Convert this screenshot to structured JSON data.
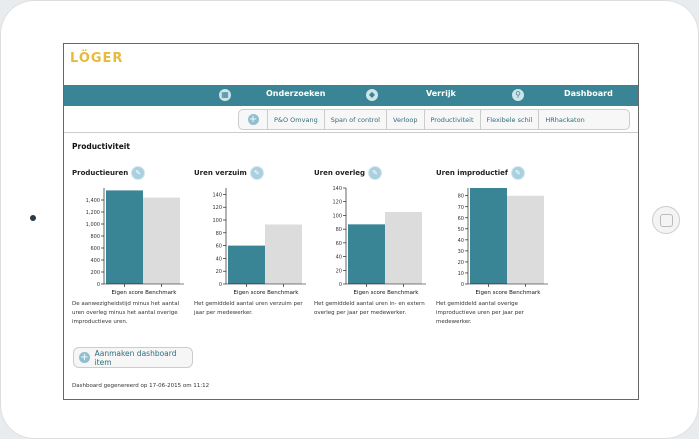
{
  "logo": {
    "text": "LÖGER"
  },
  "nav": {
    "items": [
      {
        "label": "Onderzoeken",
        "icon": "grid-icon"
      },
      {
        "label": "Verrijk",
        "icon": "tag-icon"
      },
      {
        "label": "Dashboard",
        "icon": "search-icon"
      }
    ]
  },
  "subnav": [
    "P&O Omvang",
    "Span of control",
    "Verloop",
    "Productiviteit",
    "Flexibele schil",
    "HRhackaton"
  ],
  "page_title": "Productiviteit",
  "chart_data": [
    {
      "type": "bar",
      "title": "Productieuren",
      "categories": [
        "Eigen score",
        "Benchmark"
      ],
      "values": [
        1560,
        1440
      ],
      "ylim": [
        0,
        1600
      ],
      "ticks": [
        0,
        200,
        400,
        600,
        800,
        1000,
        1200,
        1400
      ],
      "tick_labels": [
        "0",
        "200",
        "400",
        "600",
        "800",
        "1,000",
        "1,200",
        "1,400"
      ],
      "description": "De aanwezigheidstijd minus het aantal uren overleg minus het aantal overige improductieve uren."
    },
    {
      "type": "bar",
      "title": "Uren verzuim",
      "categories": [
        "Eigen score",
        "Benchmark"
      ],
      "values": [
        60,
        93
      ],
      "ylim": [
        0,
        150
      ],
      "ticks": [
        0,
        20,
        40,
        60,
        80,
        100,
        120,
        140
      ],
      "tick_labels": [
        "0",
        "20",
        "40",
        "60",
        "80",
        "100",
        "120",
        "140"
      ],
      "description": "Het gemiddeld aantal uren verzuim per jaar per medewerker."
    },
    {
      "type": "bar",
      "title": "Uren overleg",
      "categories": [
        "Eigen score",
        "Benchmark"
      ],
      "values": [
        87,
        105
      ],
      "ylim": [
        0,
        140
      ],
      "ticks": [
        0,
        20,
        40,
        60,
        80,
        100,
        120,
        140
      ],
      "tick_labels": [
        "0",
        "20",
        "40",
        "60",
        "80",
        "100",
        "120",
        "140"
      ],
      "description": "Het gemiddeld aantal uren in- en extern overleg per jaar per medewerker."
    },
    {
      "type": "bar",
      "title": "Uren improductief",
      "categories": [
        "Eigen score",
        "Benchmark"
      ],
      "values": [
        87,
        80
      ],
      "ylim": [
        0,
        87
      ],
      "ticks": [
        0,
        10,
        20,
        30,
        40,
        50,
        60,
        70,
        80
      ],
      "tick_labels": [
        "0",
        "10",
        "20",
        "30",
        "40",
        "50",
        "60",
        "70",
        "80"
      ],
      "description": "Het gemiddeld aantal overige improductieve uren per jaar per medewerker."
    }
  ],
  "colors": {
    "own": "#3a8595",
    "benchmark": "#dcdcdc"
  },
  "add_button": "Aanmaken dashboard item",
  "footer": "Dashboard gegenereerd op 17-06-2015 om 11:12"
}
